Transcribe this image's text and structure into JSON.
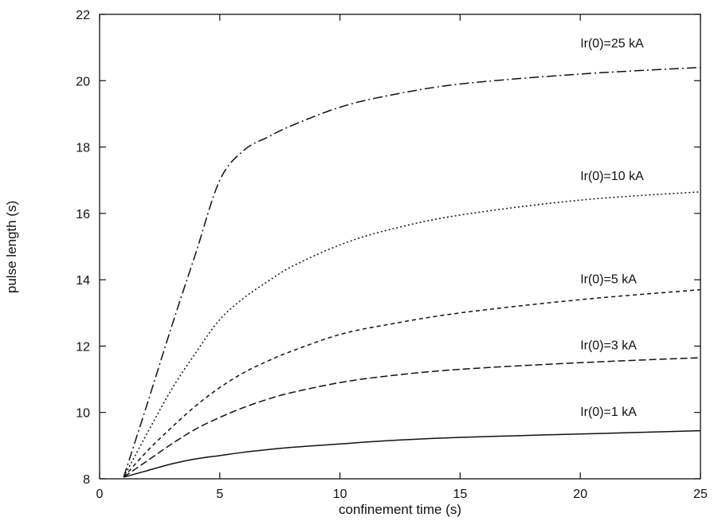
{
  "chart_data": {
    "type": "line",
    "xlabel": "confinement time (s)",
    "ylabel": "pulse length (s)",
    "xlim": [
      0,
      25
    ],
    "ylim": [
      8,
      22
    ],
    "xticks": [
      0,
      5,
      10,
      15,
      20,
      25
    ],
    "yticks": [
      8,
      10,
      12,
      14,
      16,
      18,
      20,
      22
    ],
    "grid": false,
    "legend": "inline labels near right end of each curve",
    "series": [
      {
        "name": "Ir(0)=25 kA",
        "label_at": [
          20,
          21.0
        ],
        "dash": "12,4,2,4",
        "x": [
          1,
          2,
          3,
          4,
          5,
          6,
          7,
          8,
          10,
          12,
          15,
          20,
          25
        ],
        "y": [
          8.05,
          10.3,
          12.6,
          14.8,
          17.0,
          17.9,
          18.3,
          18.65,
          19.2,
          19.55,
          19.9,
          20.2,
          20.4
        ]
      },
      {
        "name": "Ir(0)=10 kA",
        "label_at": [
          20,
          17.0
        ],
        "dash": "2,3",
        "x": [
          1,
          2,
          3,
          4,
          5,
          6,
          7,
          8,
          10,
          12,
          15,
          20,
          25
        ],
        "y": [
          8.05,
          9.4,
          10.7,
          11.8,
          12.8,
          13.45,
          13.95,
          14.4,
          15.05,
          15.5,
          15.95,
          16.4,
          16.65
        ]
      },
      {
        "name": "Ir(0)=5 kA",
        "label_at": [
          20,
          13.9
        ],
        "dash": "5,4",
        "x": [
          1,
          2,
          3,
          4,
          5,
          6,
          7,
          8,
          10,
          12,
          15,
          20,
          25
        ],
        "y": [
          8.05,
          8.85,
          9.55,
          10.2,
          10.75,
          11.2,
          11.55,
          11.85,
          12.35,
          12.65,
          13.0,
          13.4,
          13.7
        ]
      },
      {
        "name": "Ir(0)=3 kA",
        "label_at": [
          20,
          11.9
        ],
        "dash": "9,4",
        "x": [
          1,
          2,
          3,
          4,
          5,
          6,
          7,
          8,
          10,
          12,
          15,
          20,
          25
        ],
        "y": [
          8.05,
          8.55,
          9.05,
          9.5,
          9.85,
          10.15,
          10.4,
          10.6,
          10.9,
          11.1,
          11.3,
          11.5,
          11.65
        ]
      },
      {
        "name": "Ir(0)=1 kA",
        "label_at": [
          20,
          9.9
        ],
        "dash": "",
        "x": [
          1,
          2,
          3,
          4,
          5,
          6,
          7,
          8,
          10,
          12,
          15,
          20,
          25
        ],
        "y": [
          8.05,
          8.25,
          8.45,
          8.6,
          8.7,
          8.8,
          8.88,
          8.95,
          9.05,
          9.15,
          9.25,
          9.35,
          9.45
        ]
      }
    ]
  }
}
